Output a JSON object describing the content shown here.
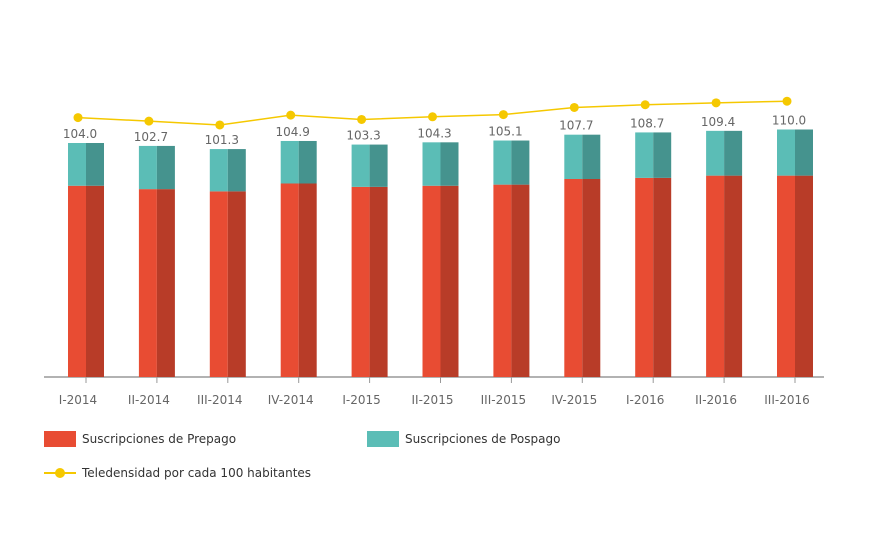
{
  "chart_data": {
    "type": "bar",
    "stacked": true,
    "categories": [
      "I-2014",
      "II-2014",
      "III-2014",
      "IV-2014",
      "I-2015",
      "II-2015",
      "III-2015",
      "IV-2015",
      "I-2016",
      "II-2016",
      "III-2016"
    ],
    "series": [
      {
        "name": "Suscripciones de Prepago",
        "type": "bar",
        "color": "#E84C33",
        "values": [
          85.0,
          83.5,
          82.5,
          86.0,
          84.5,
          85.0,
          85.5,
          88.0,
          88.5,
          89.5,
          89.5
        ]
      },
      {
        "name": "Suscripciones de Pospago",
        "type": "bar",
        "color": "#5BBDB6",
        "values": [
          19.0,
          19.2,
          18.8,
          18.9,
          18.8,
          19.3,
          19.6,
          19.7,
          20.2,
          19.9,
          20.5
        ]
      },
      {
        "name": "Teledensidad por cada 100 habitantes",
        "type": "line",
        "color": "#F5C800",
        "values": [
          104.0,
          102.7,
          101.3,
          104.9,
          103.3,
          104.3,
          105.1,
          107.7,
          108.7,
          109.4,
          110.0
        ]
      }
    ],
    "data_labels": [
      "104.0",
      "102.7",
      "101.3",
      "104.9",
      "103.3",
      "104.3",
      "105.1",
      "107.7",
      "108.7",
      "109.4",
      "110.0"
    ],
    "ylim": [
      0,
      140
    ],
    "grid": false,
    "legend": "bottom-left"
  },
  "legend": {
    "prepago": "Suscripciones de Prepago",
    "pospago": "Suscripciones de Pospago",
    "teledensidad": "Teledensidad por cada 100 habitantes"
  },
  "colors": {
    "prepago": "#E84C33",
    "prepago_dark": "#B83C28",
    "pospago": "#5BBDB6",
    "pospago_dark": "#45938E",
    "line": "#F5C800",
    "axis": "#999999",
    "label": "#666666"
  }
}
